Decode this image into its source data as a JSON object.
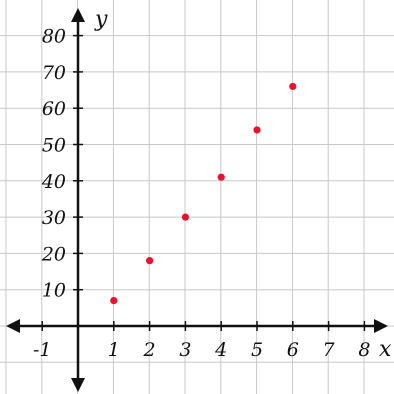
{
  "chart_data": {
    "type": "scatter",
    "title": "",
    "xlabel": "x",
    "ylabel": "y",
    "xlim": [
      -2,
      9
    ],
    "ylim": [
      -20,
      110
    ],
    "x_ticks": [
      -1,
      1,
      2,
      3,
      4,
      5,
      6,
      7,
      8
    ],
    "y_ticks": [
      10,
      20,
      30,
      40,
      50,
      60,
      70,
      80
    ],
    "x_tick_labels": [
      "-1",
      "1",
      "2",
      "3",
      "4",
      "5",
      "6",
      "7",
      "8"
    ],
    "y_tick_labels": [
      "10",
      "20",
      "30",
      "40",
      "50",
      "60",
      "70",
      "80"
    ],
    "grid": true,
    "point_color": "#e8122d",
    "grid_color": "#c8c8c8",
    "axis_color": "#111111",
    "series": [
      {
        "points": [
          {
            "x": 1,
            "y": 7
          },
          {
            "x": 2,
            "y": 18
          },
          {
            "x": 3,
            "y": 30
          },
          {
            "x": 4,
            "y": 41
          },
          {
            "x": 5,
            "y": 54
          },
          {
            "x": 6,
            "y": 66
          }
        ]
      }
    ]
  }
}
